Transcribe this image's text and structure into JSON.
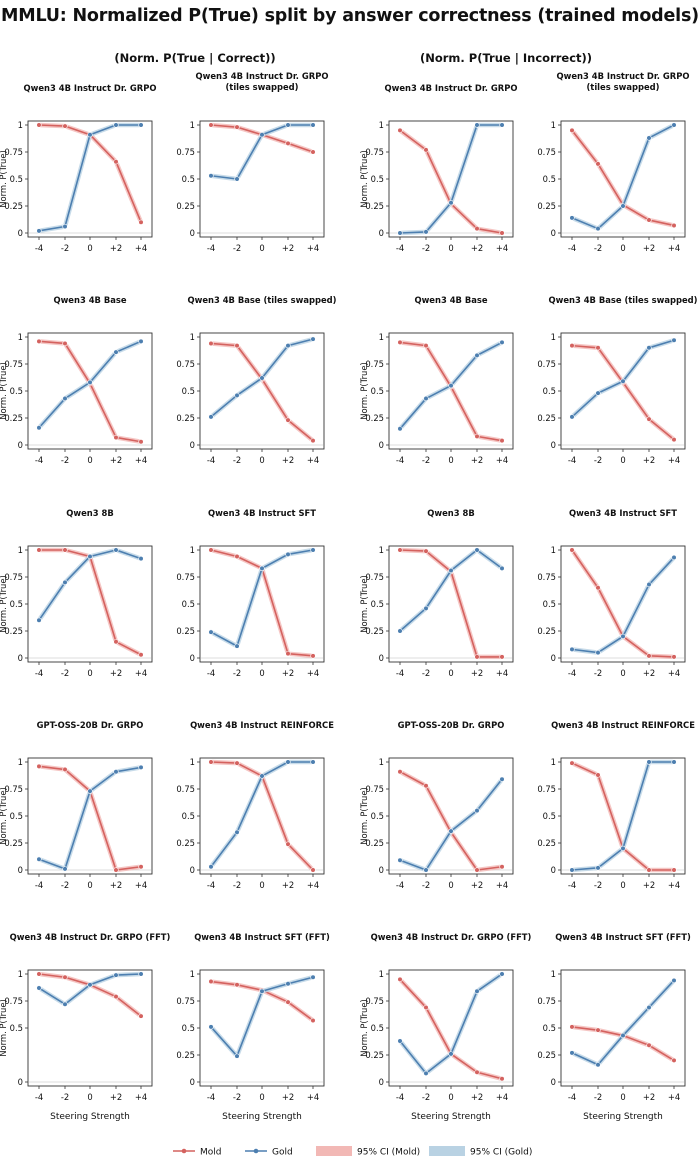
{
  "title": "MMLU: Normalized P(True) split by answer correctness (trained models)",
  "column_headers": [
    "(Norm. P(True | Correct))",
    "(Norm. P(True | Incorrect))"
  ],
  "xlabel": "Steering Strength",
  "ylabel": "Norm. P(True)",
  "colors": {
    "mold": "#d4625f",
    "gold": "#4d7fb0",
    "mold_ci": "#f2b8b5",
    "gold_ci": "#b9d2e3"
  },
  "legend": [
    {
      "key": "mold",
      "label": "Mold",
      "kind": "line"
    },
    {
      "key": "gold",
      "label": "Gold",
      "kind": "line"
    },
    {
      "key": "mold_ci",
      "label": "95% CI (Mold)",
      "kind": "patch"
    },
    {
      "key": "gold_ci",
      "label": "95% CI (Gold)",
      "kind": "patch"
    }
  ],
  "chart_data": [
    {
      "type": "line",
      "group": "Correct",
      "title": "Qwen3 4B Instruct Dr. GRPO",
      "x": [
        "-4",
        "-2",
        "0",
        "+2",
        "+4"
      ],
      "ylim": [
        0,
        1
      ],
      "yticks": [
        "0",
        "0.25",
        "0.5",
        "0.75",
        "1"
      ],
      "series": [
        {
          "name": "Mold",
          "values": [
            1.0,
            0.99,
            0.91,
            0.66,
            0.1
          ]
        },
        {
          "name": "Gold",
          "values": [
            0.02,
            0.06,
            0.91,
            1.0,
            1.0
          ]
        }
      ]
    },
    {
      "type": "line",
      "group": "Correct",
      "title": "Qwen3 4B Instruct Dr. GRPO (tiles swapped)",
      "x": [
        "-4",
        "-2",
        "0",
        "+2",
        "+4"
      ],
      "ylim": [
        0,
        1
      ],
      "yticks": [
        "0",
        "0.25",
        "0.5",
        "0.75",
        "1"
      ],
      "series": [
        {
          "name": "Mold",
          "values": [
            1.0,
            0.98,
            0.91,
            0.83,
            0.75
          ]
        },
        {
          "name": "Gold",
          "values": [
            0.53,
            0.5,
            0.91,
            1.0,
            1.0
          ]
        }
      ]
    },
    {
      "type": "line",
      "group": "Incorrect",
      "title": "Qwen3 4B Instruct Dr. GRPO",
      "x": [
        "-4",
        "-2",
        "0",
        "+2",
        "+4"
      ],
      "ylim": [
        0,
        1
      ],
      "yticks": [
        "0",
        "0.25",
        "0.5",
        "0.75",
        "1"
      ],
      "series": [
        {
          "name": "Mold",
          "values": [
            0.95,
            0.77,
            0.27,
            0.04,
            0.0
          ]
        },
        {
          "name": "Gold",
          "values": [
            0.0,
            0.01,
            0.28,
            1.0,
            1.0
          ]
        }
      ]
    },
    {
      "type": "line",
      "group": "Incorrect",
      "title": "Qwen3 4B Instruct Dr. GRPO (tiles swapped)",
      "x": [
        "-4",
        "-2",
        "0",
        "+2",
        "+4"
      ],
      "ylim": [
        0,
        1
      ],
      "yticks": [
        "0",
        "0.25",
        "0.5",
        "0.75",
        "1"
      ],
      "series": [
        {
          "name": "Mold",
          "values": [
            0.95,
            0.64,
            0.26,
            0.12,
            0.07
          ]
        },
        {
          "name": "Gold",
          "values": [
            0.14,
            0.04,
            0.25,
            0.88,
            1.0
          ]
        }
      ]
    },
    {
      "type": "line",
      "group": "Correct",
      "title": "Qwen3 4B Base",
      "x": [
        "-4",
        "-2",
        "0",
        "+2",
        "+4"
      ],
      "ylim": [
        0,
        1
      ],
      "yticks": [
        "0",
        "0.25",
        "0.5",
        "0.75",
        "1"
      ],
      "series": [
        {
          "name": "Mold",
          "values": [
            0.96,
            0.94,
            0.57,
            0.07,
            0.03
          ]
        },
        {
          "name": "Gold",
          "values": [
            0.16,
            0.43,
            0.58,
            0.86,
            0.96
          ]
        }
      ]
    },
    {
      "type": "line",
      "group": "Correct",
      "title": "Qwen3 4B Base (tiles swapped)",
      "x": [
        "-4",
        "-2",
        "0",
        "+2",
        "+4"
      ],
      "ylim": [
        0,
        1
      ],
      "yticks": [
        "0",
        "0.25",
        "0.5",
        "0.75",
        "1"
      ],
      "series": [
        {
          "name": "Mold",
          "values": [
            0.94,
            0.92,
            0.61,
            0.23,
            0.04
          ]
        },
        {
          "name": "Gold",
          "values": [
            0.26,
            0.46,
            0.62,
            0.92,
            0.98
          ]
        }
      ]
    },
    {
      "type": "line",
      "group": "Incorrect",
      "title": "Qwen3 4B Base",
      "x": [
        "-4",
        "-2",
        "0",
        "+2",
        "+4"
      ],
      "ylim": [
        0,
        1
      ],
      "yticks": [
        "0",
        "0.25",
        "0.5",
        "0.75",
        "1"
      ],
      "series": [
        {
          "name": "Mold",
          "values": [
            0.95,
            0.92,
            0.54,
            0.08,
            0.04
          ]
        },
        {
          "name": "Gold",
          "values": [
            0.15,
            0.43,
            0.55,
            0.83,
            0.95
          ]
        }
      ]
    },
    {
      "type": "line",
      "group": "Incorrect",
      "title": "Qwen3 4B Base (tiles swapped)",
      "x": [
        "-4",
        "-2",
        "0",
        "+2",
        "+4"
      ],
      "ylim": [
        0,
        1
      ],
      "yticks": [
        "0",
        "0.25",
        "0.5",
        "0.75",
        "1"
      ],
      "series": [
        {
          "name": "Mold",
          "values": [
            0.92,
            0.9,
            0.58,
            0.24,
            0.05
          ]
        },
        {
          "name": "Gold",
          "values": [
            0.26,
            0.48,
            0.59,
            0.9,
            0.97
          ]
        }
      ]
    },
    {
      "type": "line",
      "group": "Correct",
      "title": "Qwen3 8B",
      "x": [
        "-4",
        "-2",
        "0",
        "+2",
        "+4"
      ],
      "ylim": [
        0,
        1
      ],
      "yticks": [
        "0",
        "0.25",
        "0.5",
        "0.75",
        "1"
      ],
      "series": [
        {
          "name": "Mold",
          "values": [
            1.0,
            1.0,
            0.94,
            0.15,
            0.03
          ]
        },
        {
          "name": "Gold",
          "values": [
            0.35,
            0.7,
            0.94,
            1.0,
            0.92
          ]
        }
      ]
    },
    {
      "type": "line",
      "group": "Correct",
      "title": "Qwen3 4B Instruct SFT",
      "x": [
        "-4",
        "-2",
        "0",
        "+2",
        "+4"
      ],
      "ylim": [
        0,
        1
      ],
      "yticks": [
        "0",
        "0.25",
        "0.5",
        "0.75",
        "1"
      ],
      "series": [
        {
          "name": "Mold",
          "values": [
            1.0,
            0.94,
            0.83,
            0.04,
            0.02
          ]
        },
        {
          "name": "Gold",
          "values": [
            0.24,
            0.11,
            0.83,
            0.96,
            1.0
          ]
        }
      ]
    },
    {
      "type": "line",
      "group": "Incorrect",
      "title": "Qwen3 8B",
      "x": [
        "-4",
        "-2",
        "0",
        "+2",
        "+4"
      ],
      "ylim": [
        0,
        1
      ],
      "yticks": [
        "0",
        "0.25",
        "0.5",
        "0.75",
        "1"
      ],
      "series": [
        {
          "name": "Mold",
          "values": [
            1.0,
            0.99,
            0.8,
            0.01,
            0.01
          ]
        },
        {
          "name": "Gold",
          "values": [
            0.25,
            0.46,
            0.81,
            1.0,
            0.83
          ]
        }
      ]
    },
    {
      "type": "line",
      "group": "Incorrect",
      "title": "Qwen3 4B Instruct SFT",
      "x": [
        "-4",
        "-2",
        "0",
        "+2",
        "+4"
      ],
      "ylim": [
        0,
        1
      ],
      "yticks": [
        "0",
        "0.25",
        "0.5",
        "0.75",
        "1"
      ],
      "series": [
        {
          "name": "Mold",
          "values": [
            1.0,
            0.65,
            0.2,
            0.02,
            0.01
          ]
        },
        {
          "name": "Gold",
          "values": [
            0.08,
            0.05,
            0.2,
            0.68,
            0.93
          ]
        }
      ]
    },
    {
      "type": "line",
      "group": "Correct",
      "title": "GPT-OSS-20B Dr. GRPO",
      "x": [
        "-4",
        "-2",
        "0",
        "+2",
        "+4"
      ],
      "ylim": [
        0,
        1
      ],
      "yticks": [
        "0",
        "0.25",
        "0.5",
        "0.75",
        "1"
      ],
      "series": [
        {
          "name": "Mold",
          "values": [
            0.96,
            0.93,
            0.73,
            0.0,
            0.03
          ]
        },
        {
          "name": "Gold",
          "values": [
            0.1,
            0.01,
            0.73,
            0.91,
            0.95
          ]
        }
      ]
    },
    {
      "type": "line",
      "group": "Correct",
      "title": "Qwen3 4B Instruct REINFORCE",
      "x": [
        "-4",
        "-2",
        "0",
        "+2",
        "+4"
      ],
      "ylim": [
        0,
        1
      ],
      "yticks": [
        "0",
        "0.25",
        "0.5",
        "0.75",
        "1"
      ],
      "series": [
        {
          "name": "Mold",
          "values": [
            1.0,
            0.99,
            0.87,
            0.24,
            0.0
          ]
        },
        {
          "name": "Gold",
          "values": [
            0.03,
            0.35,
            0.87,
            1.0,
            1.0
          ]
        }
      ]
    },
    {
      "type": "line",
      "group": "Incorrect",
      "title": "GPT-OSS-20B Dr. GRPO",
      "x": [
        "-4",
        "-2",
        "0",
        "+2",
        "+4"
      ],
      "ylim": [
        0,
        1
      ],
      "yticks": [
        "0",
        "0.25",
        "0.5",
        "0.75",
        "1"
      ],
      "series": [
        {
          "name": "Mold",
          "values": [
            0.91,
            0.78,
            0.35,
            0.0,
            0.03
          ]
        },
        {
          "name": "Gold",
          "values": [
            0.09,
            0.0,
            0.36,
            0.55,
            0.84
          ]
        }
      ]
    },
    {
      "type": "line",
      "group": "Incorrect",
      "title": "Qwen3 4B Instruct REINFORCE",
      "x": [
        "-4",
        "-2",
        "0",
        "+2",
        "+4"
      ],
      "ylim": [
        0,
        1
      ],
      "yticks": [
        "0",
        "0.25",
        "0.5",
        "0.75",
        "1"
      ],
      "series": [
        {
          "name": "Mold",
          "values": [
            0.99,
            0.88,
            0.2,
            0.0,
            0.0
          ]
        },
        {
          "name": "Gold",
          "values": [
            0.0,
            0.02,
            0.2,
            1.0,
            1.0
          ]
        }
      ]
    },
    {
      "type": "line",
      "group": "Correct",
      "title": "Qwen3 4B Instruct Dr. GRPO (FFT)",
      "x": [
        "-4",
        "-2",
        "0",
        "+2",
        "+4"
      ],
      "ylim": [
        0,
        1
      ],
      "yticks": [
        "0",
        "0.5",
        "0.75",
        "1"
      ],
      "series": [
        {
          "name": "Mold",
          "values": [
            1.0,
            0.97,
            0.9,
            0.79,
            0.61
          ]
        },
        {
          "name": "Gold",
          "values": [
            0.87,
            0.72,
            0.9,
            0.99,
            1.0
          ]
        }
      ]
    },
    {
      "type": "line",
      "group": "Correct",
      "title": "Qwen3 4B Instruct SFT (FFT)",
      "x": [
        "-4",
        "-2",
        "0",
        "+2",
        "+4"
      ],
      "ylim": [
        0,
        1
      ],
      "yticks": [
        "0",
        "0.25",
        "0.5",
        "0.75",
        "1"
      ],
      "series": [
        {
          "name": "Mold",
          "values": [
            0.93,
            0.9,
            0.85,
            0.74,
            0.57
          ]
        },
        {
          "name": "Gold",
          "values": [
            0.51,
            0.24,
            0.84,
            0.91,
            0.97
          ]
        }
      ]
    },
    {
      "type": "line",
      "group": "Incorrect",
      "title": "Qwen3 4B Instruct Dr. GRPO (FFT)",
      "x": [
        "-4",
        "-2",
        "0",
        "+2",
        "+4"
      ],
      "ylim": [
        0,
        1
      ],
      "yticks": [
        "0",
        "0.25",
        "0.5",
        "0.75",
        "1"
      ],
      "series": [
        {
          "name": "Mold",
          "values": [
            0.95,
            0.69,
            0.26,
            0.09,
            0.03
          ]
        },
        {
          "name": "Gold",
          "values": [
            0.38,
            0.08,
            0.26,
            0.84,
            1.0
          ]
        }
      ]
    },
    {
      "type": "line",
      "group": "Incorrect",
      "title": "Qwen3 4B Instruct SFT (FFT)",
      "x": [
        "-4",
        "-2",
        "0",
        "+2",
        "+4"
      ],
      "ylim": [
        0,
        1
      ],
      "yticks": [
        "0",
        "0.25",
        "0.5",
        "0.75",
        "1"
      ],
      "series": [
        {
          "name": "Mold",
          "values": [
            0.51,
            0.48,
            0.43,
            0.34,
            0.2
          ]
        },
        {
          "name": "Gold",
          "values": [
            0.27,
            0.16,
            0.43,
            0.69,
            0.94
          ]
        }
      ]
    }
  ]
}
